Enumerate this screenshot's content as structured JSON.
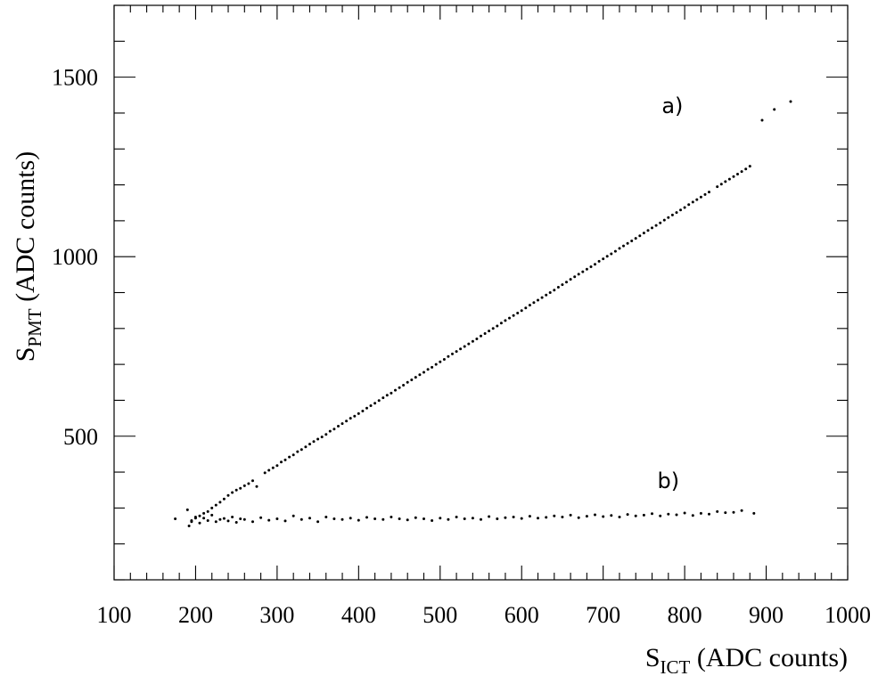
{
  "chart_data": {
    "type": "scatter",
    "title": "",
    "xlabel": {
      "main": "S",
      "sub": "ICT",
      "rest": " (ADC counts)"
    },
    "ylabel": {
      "main": "S",
      "sub": "PMT",
      "rest": " (ADC counts)"
    },
    "xlim": [
      100,
      1000
    ],
    "ylim": [
      100,
      1700
    ],
    "x_ticks": [
      100,
      200,
      300,
      400,
      500,
      600,
      700,
      800,
      900,
      1000
    ],
    "x_tick_labels": [
      "100",
      "200",
      "300",
      "400",
      "500",
      "600",
      "700",
      "800",
      "900",
      "1000"
    ],
    "y_ticks": [
      500,
      1000,
      1500
    ],
    "y_tick_labels": [
      "500",
      "1000",
      "1500"
    ],
    "grid": false,
    "legend": "none",
    "point_color": "#000000",
    "series": [
      {
        "id": "a",
        "x": [
          195,
          200,
          205,
          210,
          215,
          220,
          225,
          230,
          235,
          240,
          245,
          250,
          255,
          260,
          265,
          270,
          275,
          285,
          290,
          295,
          300,
          305,
          310,
          315,
          320,
          325,
          330,
          335,
          340,
          345,
          350,
          355,
          360,
          365,
          370,
          375,
          380,
          385,
          390,
          395,
          400,
          405,
          410,
          415,
          420,
          425,
          430,
          435,
          440,
          445,
          450,
          455,
          460,
          465,
          470,
          475,
          480,
          485,
          490,
          495,
          500,
          505,
          510,
          515,
          520,
          525,
          530,
          535,
          540,
          545,
          550,
          555,
          560,
          565,
          570,
          575,
          580,
          585,
          590,
          595,
          600,
          605,
          610,
          615,
          620,
          625,
          630,
          635,
          640,
          645,
          650,
          655,
          660,
          665,
          670,
          675,
          680,
          685,
          690,
          695,
          700,
          705,
          710,
          715,
          720,
          725,
          730,
          735,
          740,
          745,
          750,
          755,
          760,
          765,
          770,
          775,
          780,
          785,
          790,
          795,
          800,
          805,
          810,
          815,
          820,
          825,
          830,
          840,
          845,
          850,
          855,
          860,
          865,
          870,
          875,
          880,
          895,
          910,
          930
        ],
        "y": [
          265,
          272,
          278,
          285,
          290,
          300,
          308,
          316,
          325,
          335,
          343,
          350,
          355,
          362,
          368,
          376,
          360,
          398,
          405,
          412,
          418,
          428,
          434,
          442,
          448,
          457,
          463,
          470,
          478,
          485,
          492,
          498,
          505,
          514,
          520,
          528,
          535,
          542,
          550,
          556,
          563,
          570,
          578,
          585,
          592,
          599,
          607,
          614,
          620,
          628,
          635,
          642,
          650,
          657,
          664,
          671,
          678,
          686,
          692,
          700,
          707,
          714,
          722,
          729,
          736,
          743,
          750,
          757,
          764,
          771,
          779,
          786,
          793,
          800,
          807,
          815,
          822,
          829,
          836,
          843,
          850,
          857,
          865,
          872,
          879,
          886,
          893,
          900,
          907,
          915,
          922,
          929,
          937,
          944,
          951,
          958,
          965,
          972,
          979,
          987,
          994,
          1001,
          1008,
          1015,
          1023,
          1030,
          1037,
          1044,
          1051,
          1058,
          1066,
          1073,
          1080,
          1087,
          1094,
          1102,
          1109,
          1116,
          1123,
          1130,
          1137,
          1145,
          1152,
          1159,
          1166,
          1173,
          1180,
          1195,
          1202,
          1209,
          1216,
          1223,
          1230,
          1237,
          1244,
          1252,
          1380,
          1410,
          1432
        ]
      },
      {
        "id": "b",
        "x": [
          175,
          190,
          192,
          195,
          200,
          205,
          210,
          215,
          220,
          225,
          230,
          235,
          240,
          245,
          250,
          255,
          260,
          270,
          280,
          290,
          300,
          310,
          320,
          330,
          340,
          350,
          360,
          370,
          380,
          390,
          400,
          410,
          420,
          430,
          440,
          450,
          460,
          470,
          480,
          490,
          500,
          510,
          520,
          530,
          540,
          550,
          560,
          570,
          580,
          590,
          600,
          610,
          620,
          630,
          640,
          650,
          660,
          670,
          680,
          690,
          700,
          710,
          720,
          730,
          740,
          750,
          760,
          770,
          780,
          790,
          800,
          810,
          820,
          830,
          840,
          850,
          860,
          870,
          885
        ],
        "y": [
          270,
          295,
          250,
          262,
          275,
          258,
          272,
          265,
          280,
          262,
          268,
          271,
          264,
          275,
          260,
          270,
          268,
          262,
          273,
          266,
          270,
          264,
          278,
          268,
          272,
          262,
          275,
          270,
          268,
          272,
          266,
          274,
          270,
          268,
          275,
          270,
          267,
          273,
          270,
          265,
          272,
          268,
          275,
          270,
          272,
          268,
          276,
          270,
          273,
          275,
          271,
          277,
          272,
          274,
          278,
          275,
          280,
          273,
          277,
          281,
          276,
          279,
          275,
          282,
          278,
          280,
          284,
          278,
          283,
          281,
          286,
          279,
          285,
          283,
          290,
          287,
          288,
          293,
          285
        ]
      }
    ],
    "annotations": [
      {
        "text": "a)",
        "x": 785,
        "y": 1400
      },
      {
        "text": "b)",
        "x": 780,
        "y": 355
      }
    ]
  }
}
